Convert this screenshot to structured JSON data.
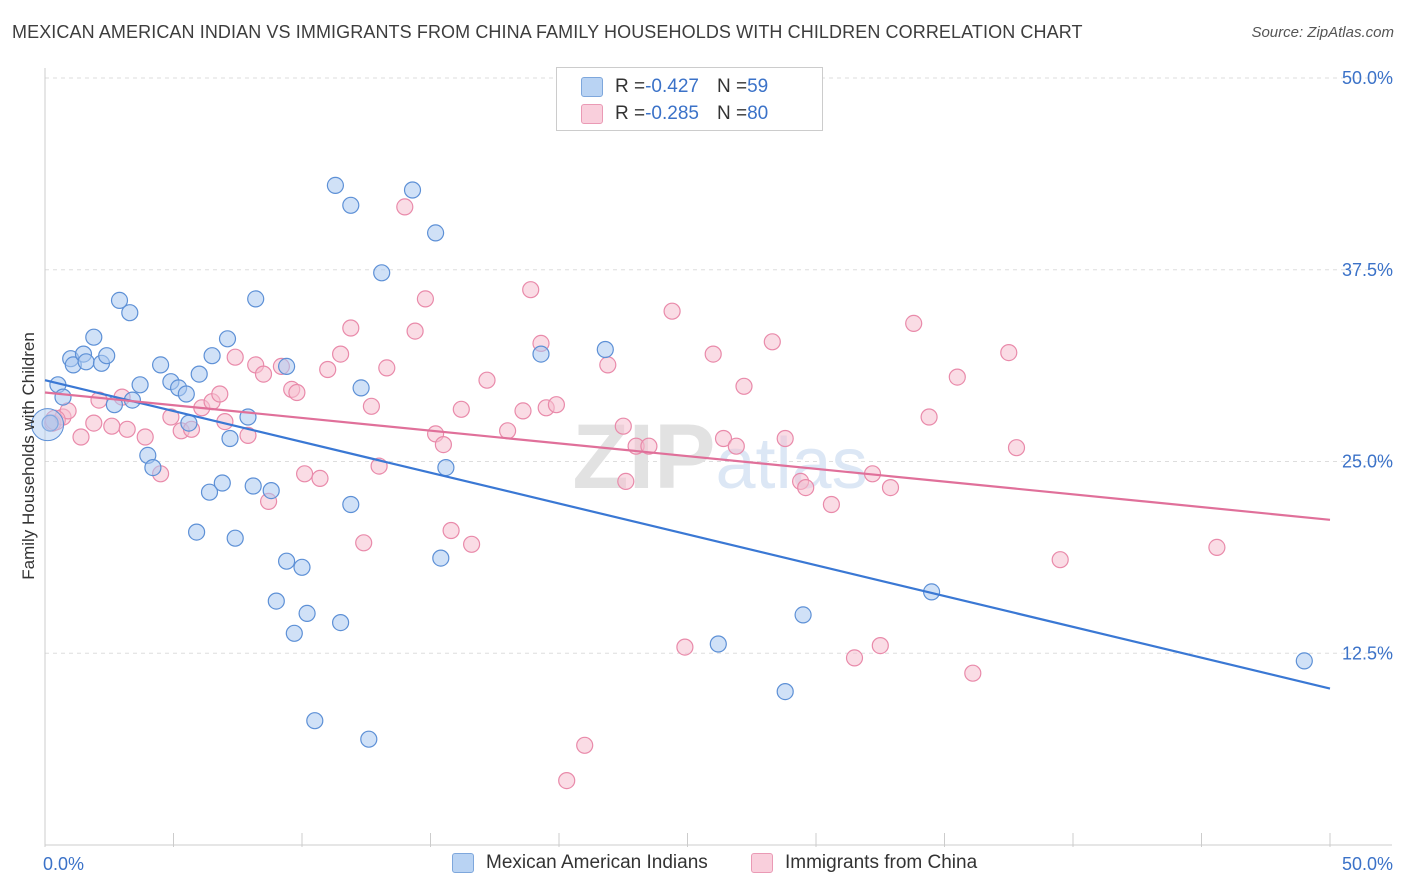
{
  "title": "MEXICAN AMERICAN INDIAN VS IMMIGRANTS FROM CHINA FAMILY HOUSEHOLDS WITH CHILDREN CORRELATION CHART",
  "source": "Source: ZipAtlas.com",
  "watermark": "ZIPatlas",
  "legend": {
    "r_label": "R = ",
    "n_label": "N = ",
    "rows": [
      {
        "r": "-0.427",
        "n": "59"
      },
      {
        "r": "-0.285",
        "n": "80"
      }
    ]
  },
  "colors": {
    "blue_fill": "#a9c8f0",
    "blue_stroke": "#5d90d6",
    "blue_line": "#3a78d4",
    "pink_fill": "#f6bfd0",
    "pink_stroke": "#e98aaa",
    "pink_line": "#e0709a",
    "axis_text": "#3b72c8",
    "grid": "#dddddd"
  },
  "chart_data": {
    "type": "scatter",
    "title": "MEXICAN AMERICAN INDIAN VS IMMIGRANTS FROM CHINA FAMILY HOUSEHOLDS WITH CHILDREN CORRELATION CHART",
    "xlabel": "",
    "ylabel": "Family Households with Children",
    "xlim": [
      0,
      50
    ],
    "ylim": [
      0,
      50
    ],
    "x_tick_labels": [
      "0.0%",
      "50.0%"
    ],
    "y_tick_labels": [
      "12.5%",
      "25.0%",
      "37.5%",
      "50.0%"
    ],
    "y_ticks": [
      12.5,
      25.0,
      37.5,
      50.0
    ],
    "grid": true,
    "legend_position": "top-center",
    "series": [
      {
        "name": "Mexican American Indians",
        "color": "#a9c8f0",
        "trend": {
          "x": [
            0,
            50
          ],
          "y": [
            30.3,
            10.2
          ]
        },
        "points": [
          [
            0.2,
            27.5
          ],
          [
            0.5,
            30.0
          ],
          [
            0.7,
            29.2
          ],
          [
            1.0,
            31.7
          ],
          [
            1.1,
            31.3
          ],
          [
            1.5,
            32.0
          ],
          [
            1.6,
            31.5
          ],
          [
            1.9,
            33.1
          ],
          [
            2.2,
            31.4
          ],
          [
            2.4,
            31.9
          ],
          [
            2.7,
            28.7
          ],
          [
            2.9,
            35.5
          ],
          [
            3.3,
            34.7
          ],
          [
            3.4,
            29.0
          ],
          [
            3.7,
            30.0
          ],
          [
            4.0,
            25.4
          ],
          [
            4.2,
            24.6
          ],
          [
            4.5,
            31.3
          ],
          [
            4.9,
            30.2
          ],
          [
            5.2,
            29.8
          ],
          [
            5.5,
            29.4
          ],
          [
            5.6,
            27.5
          ],
          [
            5.9,
            20.4
          ],
          [
            6.0,
            30.7
          ],
          [
            6.4,
            23.0
          ],
          [
            6.5,
            31.9
          ],
          [
            6.9,
            23.6
          ],
          [
            7.1,
            33.0
          ],
          [
            7.2,
            26.5
          ],
          [
            7.4,
            20.0
          ],
          [
            7.9,
            27.9
          ],
          [
            8.1,
            23.4
          ],
          [
            8.2,
            35.6
          ],
          [
            8.8,
            23.1
          ],
          [
            9.0,
            15.9
          ],
          [
            9.4,
            31.2
          ],
          [
            9.4,
            18.5
          ],
          [
            9.7,
            13.8
          ],
          [
            10.0,
            18.1
          ],
          [
            10.2,
            15.1
          ],
          [
            10.5,
            8.1
          ],
          [
            11.3,
            43.0
          ],
          [
            11.5,
            14.5
          ],
          [
            11.9,
            41.7
          ],
          [
            11.9,
            22.2
          ],
          [
            12.3,
            29.8
          ],
          [
            12.6,
            6.9
          ],
          [
            13.1,
            37.3
          ],
          [
            14.3,
            42.7
          ],
          [
            15.2,
            39.9
          ],
          [
            15.6,
            24.6
          ],
          [
            15.4,
            18.7
          ],
          [
            19.3,
            32.0
          ],
          [
            21.8,
            32.3
          ],
          [
            26.2,
            13.1
          ],
          [
            28.8,
            10.0
          ],
          [
            29.5,
            15.0
          ],
          [
            34.5,
            16.5
          ],
          [
            49.0,
            12.0
          ]
        ]
      },
      {
        "name": "Immigrants from China",
        "color": "#f6bfd0",
        "trend": {
          "x": [
            0,
            50
          ],
          "y": [
            29.5,
            21.2
          ]
        },
        "points": [
          [
            0.3,
            27.5
          ],
          [
            0.7,
            27.9
          ],
          [
            0.9,
            28.3
          ],
          [
            1.4,
            26.6
          ],
          [
            1.9,
            27.5
          ],
          [
            2.1,
            29.0
          ],
          [
            2.6,
            27.3
          ],
          [
            3.0,
            29.2
          ],
          [
            3.2,
            27.1
          ],
          [
            3.9,
            26.6
          ],
          [
            4.5,
            24.2
          ],
          [
            4.9,
            27.9
          ],
          [
            5.3,
            27.0
          ],
          [
            5.7,
            27.1
          ],
          [
            6.1,
            28.5
          ],
          [
            6.5,
            28.9
          ],
          [
            6.8,
            29.4
          ],
          [
            7.0,
            27.6
          ],
          [
            7.4,
            31.8
          ],
          [
            7.9,
            26.7
          ],
          [
            8.2,
            31.3
          ],
          [
            8.5,
            30.7
          ],
          [
            8.7,
            22.4
          ],
          [
            9.2,
            31.2
          ],
          [
            9.6,
            29.7
          ],
          [
            9.8,
            29.5
          ],
          [
            10.1,
            24.2
          ],
          [
            10.7,
            23.9
          ],
          [
            11.0,
            31.0
          ],
          [
            11.5,
            32.0
          ],
          [
            11.9,
            33.7
          ],
          [
            12.4,
            19.7
          ],
          [
            12.7,
            28.6
          ],
          [
            13.0,
            24.7
          ],
          [
            13.3,
            31.1
          ],
          [
            14.0,
            41.6
          ],
          [
            14.4,
            33.5
          ],
          [
            14.8,
            35.6
          ],
          [
            15.2,
            26.8
          ],
          [
            15.5,
            26.1
          ],
          [
            15.8,
            20.5
          ],
          [
            16.2,
            28.4
          ],
          [
            16.6,
            19.6
          ],
          [
            17.2,
            30.3
          ],
          [
            18.0,
            27.0
          ],
          [
            18.6,
            28.3
          ],
          [
            18.9,
            36.2
          ],
          [
            19.3,
            32.7
          ],
          [
            19.5,
            28.5
          ],
          [
            19.9,
            28.7
          ],
          [
            20.3,
            4.2
          ],
          [
            21.0,
            6.5
          ],
          [
            21.9,
            31.3
          ],
          [
            22.5,
            27.3
          ],
          [
            22.6,
            23.7
          ],
          [
            23.0,
            26.0
          ],
          [
            23.5,
            26.0
          ],
          [
            24.4,
            34.8
          ],
          [
            24.9,
            12.9
          ],
          [
            26.0,
            32.0
          ],
          [
            26.4,
            26.5
          ],
          [
            26.9,
            26.0
          ],
          [
            27.2,
            29.9
          ],
          [
            28.3,
            32.8
          ],
          [
            28.8,
            26.5
          ],
          [
            29.4,
            23.7
          ],
          [
            29.6,
            23.3
          ],
          [
            30.6,
            22.2
          ],
          [
            31.5,
            12.2
          ],
          [
            32.2,
            24.2
          ],
          [
            32.5,
            13.0
          ],
          [
            32.9,
            23.3
          ],
          [
            33.8,
            34.0
          ],
          [
            34.4,
            27.9
          ],
          [
            35.5,
            30.5
          ],
          [
            36.1,
            11.2
          ],
          [
            37.5,
            32.1
          ],
          [
            37.8,
            25.9
          ],
          [
            39.5,
            18.6
          ],
          [
            45.6,
            19.4
          ]
        ]
      }
    ]
  }
}
